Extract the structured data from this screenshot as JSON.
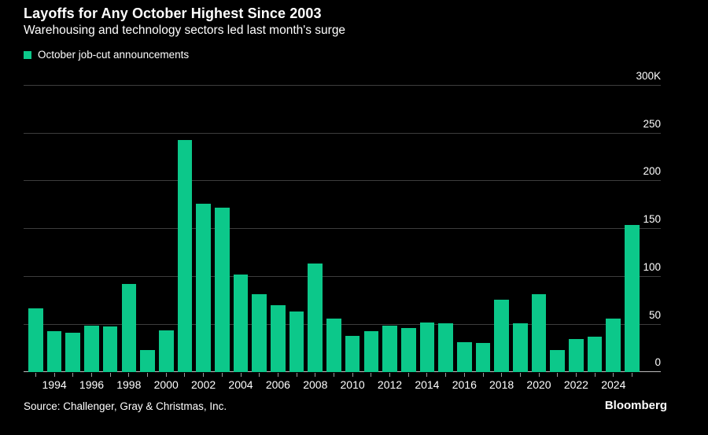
{
  "header": {
    "title": "Layoffs for Any October Highest Since 2003",
    "subtitle": "Warehousing and technology sectors led last month's surge"
  },
  "legend": {
    "label": "October job-cut announcements"
  },
  "chart_data": {
    "type": "bar",
    "title": "Layoffs for Any October Highest Since 2003",
    "subtitle": "Warehousing and technology sectors led last month's surge",
    "series_name": "October job-cut announcements",
    "unit": "thousands of announced job cuts (K)",
    "x": [
      1993,
      1994,
      1995,
      1996,
      1997,
      1998,
      1999,
      2000,
      2001,
      2002,
      2003,
      2004,
      2005,
      2006,
      2007,
      2008,
      2009,
      2010,
      2011,
      2012,
      2013,
      2014,
      2015,
      2016,
      2017,
      2018,
      2019,
      2020,
      2021,
      2022,
      2023,
      2024,
      2025
    ],
    "values": [
      66,
      42.5,
      41,
      48,
      47,
      91.5,
      22.5,
      43.5,
      242.2,
      176,
      171.9,
      101.8,
      81.3,
      69.5,
      63.1,
      112.9,
      55.7,
      37.5,
      42.3,
      47.7,
      45.7,
      51.2,
      50.5,
      30.7,
      29.8,
      75.6,
      50.3,
      80.7,
      22.8,
      33.8,
      36.8,
      55.6,
      153.1
    ],
    "ylim": [
      0,
      300
    ],
    "yticks": [
      0,
      50,
      100,
      150,
      200,
      250,
      300
    ],
    "ytick_labels": [
      "0",
      "50",
      "100",
      "150",
      "200",
      "250",
      "300K"
    ],
    "xtick_labeled_years": [
      1994,
      1996,
      1998,
      2000,
      2002,
      2004,
      2006,
      2008,
      2010,
      2012,
      2014,
      2016,
      2018,
      2020,
      2022,
      2024
    ],
    "grid": true,
    "legend_position": "top-left",
    "bar_color": "#0cc88a",
    "background_color": "#000000",
    "text_color": "#ffffff"
  },
  "footer": {
    "source": "Source: Challenger, Gray & Christmas, Inc.",
    "brand": "Bloomberg"
  }
}
